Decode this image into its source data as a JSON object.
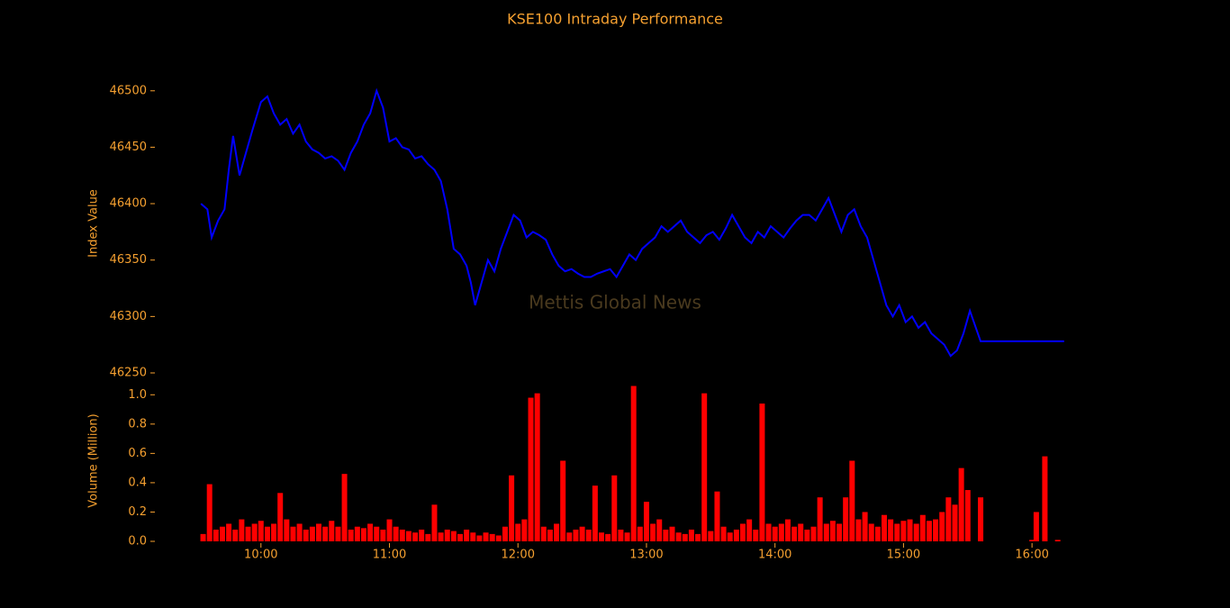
{
  "chart_data": [
    {
      "type": "line",
      "title": "KSE100 Intraday Performance",
      "ylabel": "Index Value",
      "annotation": "Mettis Global News",
      "x": [
        "09:32",
        "09:35",
        "09:37",
        "09:40",
        "09:43",
        "09:45",
        "09:47",
        "09:50",
        "09:53",
        "09:56",
        "10:00",
        "10:03",
        "10:06",
        "10:09",
        "10:12",
        "10:15",
        "10:18",
        "10:21",
        "10:24",
        "10:27",
        "10:30",
        "10:33",
        "10:36",
        "10:39",
        "10:42",
        "10:45",
        "10:48",
        "10:51",
        "10:54",
        "10:57",
        "11:00",
        "11:03",
        "11:06",
        "11:09",
        "11:12",
        "11:15",
        "11:18",
        "11:21",
        "11:24",
        "11:27",
        "11:30",
        "11:33",
        "11:36",
        "11:38",
        "11:40",
        "11:43",
        "11:46",
        "11:49",
        "11:52",
        "11:55",
        "11:58",
        "12:01",
        "12:04",
        "12:07",
        "12:10",
        "12:13",
        "12:16",
        "12:19",
        "12:22",
        "12:25",
        "12:28",
        "12:31",
        "12:34",
        "12:37",
        "12:40",
        "12:43",
        "12:46",
        "12:49",
        "12:52",
        "12:55",
        "12:58",
        "13:01",
        "13:04",
        "13:07",
        "13:10",
        "13:13",
        "13:16",
        "13:19",
        "13:22",
        "13:25",
        "13:28",
        "13:31",
        "13:34",
        "13:37",
        "13:40",
        "13:43",
        "13:46",
        "13:49",
        "13:52",
        "13:55",
        "13:58",
        "14:01",
        "14:04",
        "14:07",
        "14:10",
        "14:13",
        "14:16",
        "14:19",
        "14:22",
        "14:25",
        "14:28",
        "14:31",
        "14:34",
        "14:37",
        "14:40",
        "14:43",
        "14:46",
        "14:49",
        "14:52",
        "14:55",
        "14:58",
        "15:01",
        "15:04",
        "15:07",
        "15:10",
        "15:13",
        "15:16",
        "15:19",
        "15:22",
        "15:25",
        "15:28",
        "15:31",
        "15:36",
        "16:15"
      ],
      "series": [
        {
          "name": "KSE100",
          "color": "#0000ff",
          "values": [
            46400,
            46395,
            46370,
            46385,
            46395,
            46430,
            46460,
            46425,
            46445,
            46465,
            46490,
            46495,
            46480,
            46470,
            46475,
            46462,
            46470,
            46455,
            46448,
            46445,
            46440,
            46442,
            46438,
            46430,
            46445,
            46455,
            46470,
            46480,
            46500,
            46485,
            46455,
            46458,
            46450,
            46448,
            46440,
            46442,
            46435,
            46430,
            46420,
            46395,
            46360,
            46355,
            46345,
            46330,
            46310,
            46330,
            46350,
            46340,
            46360,
            46375,
            46390,
            46385,
            46370,
            46375,
            46372,
            46368,
            46355,
            46345,
            46340,
            46342,
            46338,
            46335,
            46335,
            46338,
            46340,
            46342,
            46335,
            46345,
            46355,
            46350,
            46360,
            46365,
            46370,
            46380,
            46375,
            46380,
            46385,
            46375,
            46370,
            46365,
            46372,
            46375,
            46368,
            46378,
            46390,
            46380,
            46370,
            46365,
            46375,
            46370,
            46380,
            46375,
            46370,
            46378,
            46385,
            46390,
            46390,
            46385,
            46395,
            46405,
            46390,
            46375,
            46390,
            46395,
            46380,
            46370,
            46350,
            46330,
            46310,
            46300,
            46310,
            46295,
            46300,
            46290,
            46295,
            46285,
            46280,
            46275,
            46265,
            46270,
            46285,
            46305,
            46278,
            46278
          ]
        }
      ],
      "xlim": [
        "09:15",
        "16:20"
      ],
      "ylim": [
        46250,
        46515
      ],
      "yticks": [
        46250,
        46300,
        46350,
        46400,
        46450,
        46500
      ]
    },
    {
      "type": "bar",
      "ylabel": "Volume (Million)",
      "x": [
        "09:33",
        "09:36",
        "09:39",
        "09:42",
        "09:45",
        "09:48",
        "09:51",
        "09:54",
        "09:57",
        "10:00",
        "10:03",
        "10:06",
        "10:09",
        "10:12",
        "10:15",
        "10:18",
        "10:21",
        "10:24",
        "10:27",
        "10:30",
        "10:33",
        "10:36",
        "10:39",
        "10:42",
        "10:45",
        "10:48",
        "10:51",
        "10:54",
        "10:57",
        "11:00",
        "11:03",
        "11:06",
        "11:09",
        "11:12",
        "11:15",
        "11:18",
        "11:21",
        "11:24",
        "11:27",
        "11:30",
        "11:33",
        "11:36",
        "11:39",
        "11:42",
        "11:45",
        "11:48",
        "11:51",
        "11:54",
        "11:57",
        "12:00",
        "12:03",
        "12:06",
        "12:09",
        "12:12",
        "12:15",
        "12:18",
        "12:21",
        "12:24",
        "12:27",
        "12:30",
        "12:33",
        "12:36",
        "12:39",
        "12:42",
        "12:45",
        "12:48",
        "12:51",
        "12:54",
        "12:57",
        "13:00",
        "13:03",
        "13:06",
        "13:09",
        "13:12",
        "13:15",
        "13:18",
        "13:21",
        "13:24",
        "13:27",
        "13:30",
        "13:33",
        "13:36",
        "13:39",
        "13:42",
        "13:45",
        "13:48",
        "13:51",
        "13:54",
        "13:57",
        "14:00",
        "14:03",
        "14:06",
        "14:09",
        "14:12",
        "14:15",
        "14:18",
        "14:21",
        "14:24",
        "14:27",
        "14:30",
        "14:33",
        "14:36",
        "14:39",
        "14:42",
        "14:45",
        "14:48",
        "14:51",
        "14:54",
        "14:57",
        "15:00",
        "15:03",
        "15:06",
        "15:09",
        "15:12",
        "15:15",
        "15:18",
        "15:21",
        "15:24",
        "15:27",
        "15:30",
        "15:36",
        "16:00",
        "16:02",
        "16:06",
        "16:12"
      ],
      "series": [
        {
          "name": "Volume",
          "color": "#ff0000",
          "values": [
            0.05,
            0.39,
            0.08,
            0.1,
            0.12,
            0.08,
            0.15,
            0.1,
            0.12,
            0.14,
            0.1,
            0.12,
            0.33,
            0.15,
            0.1,
            0.12,
            0.08,
            0.1,
            0.12,
            0.1,
            0.14,
            0.1,
            0.46,
            0.08,
            0.1,
            0.09,
            0.12,
            0.1,
            0.08,
            0.15,
            0.1,
            0.08,
            0.07,
            0.06,
            0.08,
            0.05,
            0.25,
            0.06,
            0.08,
            0.07,
            0.05,
            0.08,
            0.06,
            0.04,
            0.06,
            0.05,
            0.04,
            0.1,
            0.45,
            0.12,
            0.15,
            0.98,
            1.01,
            0.1,
            0.08,
            0.12,
            0.55,
            0.06,
            0.08,
            0.1,
            0.08,
            0.38,
            0.06,
            0.05,
            0.45,
            0.08,
            0.06,
            1.06,
            0.1,
            0.27,
            0.12,
            0.15,
            0.08,
            0.1,
            0.06,
            0.05,
            0.08,
            0.05,
            1.01,
            0.07,
            0.34,
            0.1,
            0.06,
            0.08,
            0.12,
            0.15,
            0.08,
            0.94,
            0.12,
            0.1,
            0.12,
            0.15,
            0.1,
            0.12,
            0.08,
            0.1,
            0.3,
            0.12,
            0.14,
            0.12,
            0.3,
            0.55,
            0.15,
            0.2,
            0.12,
            0.1,
            0.18,
            0.15,
            0.12,
            0.14,
            0.15,
            0.12,
            0.18,
            0.14,
            0.15,
            0.2,
            0.3,
            0.25,
            0.5,
            0.35,
            0.3,
            0.01,
            0.2,
            0.58,
            0.01
          ]
        }
      ],
      "xlim": [
        "09:15",
        "16:20"
      ],
      "ylim": [
        0,
        1.1
      ],
      "yticks": [
        {
          "value": 0,
          "label": "0.0"
        },
        0.2,
        0.4,
        0.6,
        0.8,
        {
          "value": 1,
          "label": "1.0"
        }
      ],
      "xticks": [
        "10:00",
        "11:00",
        "12:00",
        "13:00",
        "14:00",
        "15:00",
        "16:00"
      ]
    }
  ]
}
